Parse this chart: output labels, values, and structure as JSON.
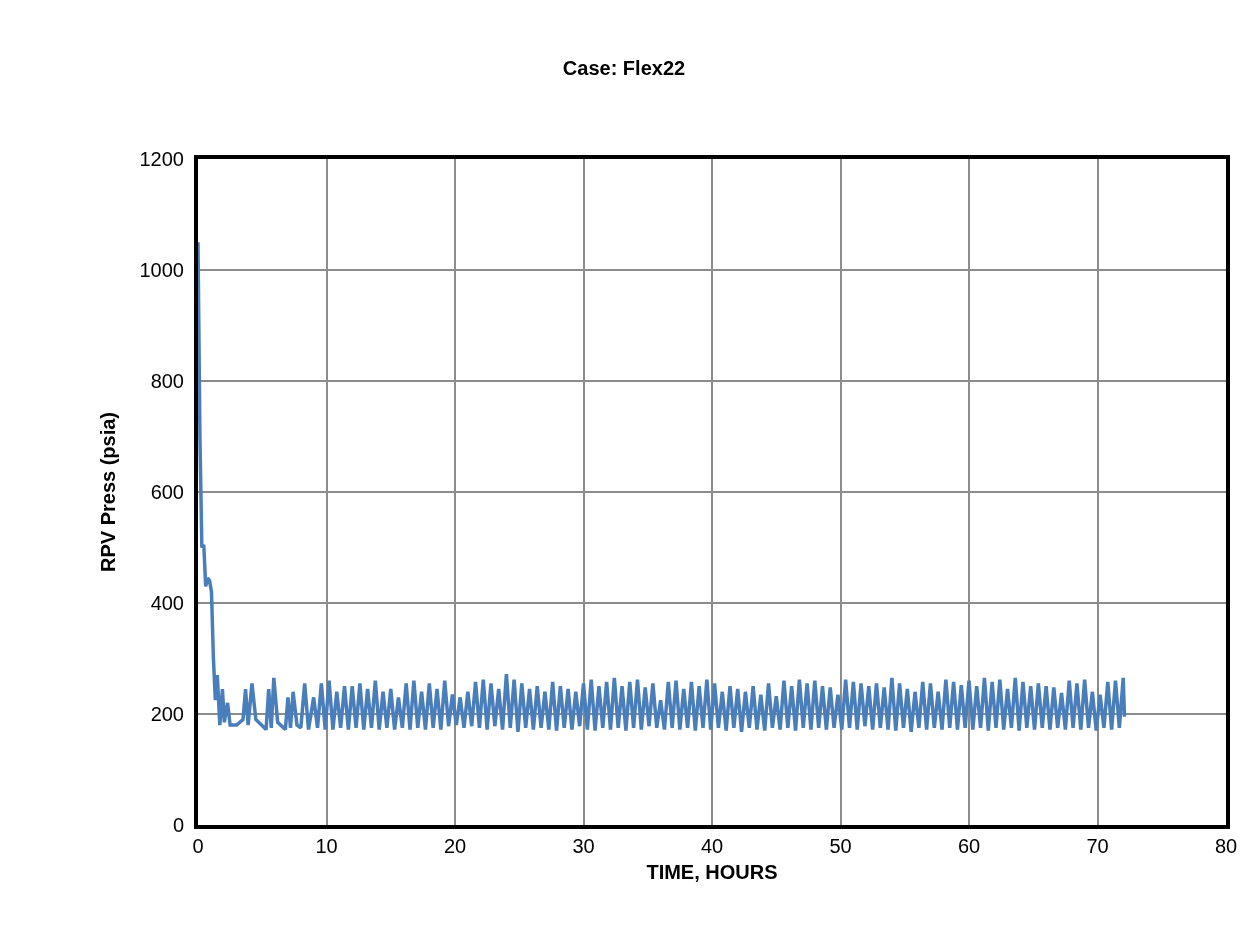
{
  "chart_data": {
    "type": "line",
    "title": "Case: Flex22",
    "xlabel": "TIME, HOURS",
    "ylabel": "RPV Press (psia)",
    "xlim": [
      0,
      80
    ],
    "xticks": [
      0,
      10,
      20,
      30,
      40,
      50,
      60,
      70,
      80
    ],
    "ylim": [
      0,
      1200
    ],
    "yticks": [
      0,
      200,
      400,
      600,
      800,
      1000,
      1200
    ],
    "grid": true,
    "legend": false,
    "marker": "none",
    "line_style": "solid",
    "series": [
      {
        "color": "#4a7ebb",
        "x": [
          0,
          0.15,
          0.3,
          0.45,
          0.6,
          0.75,
          0.9,
          1.05,
          1.2,
          1.35,
          1.5,
          1.7,
          1.9,
          2.05,
          2.3,
          2.5,
          3.0,
          3.5,
          3.7,
          3.9,
          4.2,
          4.5,
          5.3,
          5.5,
          5.7,
          5.9,
          6.2,
          6.8,
          7.0,
          7.2,
          7.4,
          7.7,
          8.0,
          8.3,
          8.6,
          9.0,
          9.3,
          9.6,
          9.9,
          10.2,
          10.5,
          10.8,
          11.1,
          11.4,
          11.7,
          12.0,
          12.3,
          12.6,
          12.9,
          13.2,
          13.5,
          13.8,
          14.1,
          14.4,
          14.7,
          15.0,
          15.3,
          15.6,
          15.9,
          16.2,
          16.5,
          16.8,
          17.1,
          17.4,
          17.7,
          18.0,
          18.3,
          18.6,
          18.9,
          19.2,
          19.5,
          19.8,
          20.1,
          20.4,
          20.7,
          21.0,
          21.3,
          21.6,
          21.9,
          22.2,
          22.5,
          22.8,
          23.1,
          23.4,
          23.7,
          24.0,
          24.3,
          24.6,
          24.9,
          25.2,
          25.5,
          25.8,
          26.1,
          26.4,
          26.7,
          27.0,
          27.3,
          27.6,
          27.9,
          28.2,
          28.5,
          28.8,
          29.1,
          29.4,
          29.7,
          30.0,
          30.3,
          30.6,
          30.9,
          31.2,
          31.5,
          31.8,
          32.1,
          32.4,
          32.7,
          33.0,
          33.3,
          33.6,
          33.9,
          34.2,
          34.5,
          34.8,
          35.1,
          35.4,
          35.7,
          36.0,
          36.3,
          36.6,
          36.9,
          37.2,
          37.5,
          37.8,
          38.1,
          38.4,
          38.7,
          39.0,
          39.3,
          39.6,
          39.9,
          40.2,
          40.5,
          40.8,
          41.1,
          41.4,
          41.7,
          42.0,
          42.3,
          42.6,
          42.9,
          43.2,
          43.5,
          43.8,
          44.1,
          44.4,
          44.7,
          45.0,
          45.3,
          45.6,
          45.9,
          46.2,
          46.5,
          46.8,
          47.1,
          47.4,
          47.7,
          48.0,
          48.3,
          48.6,
          48.9,
          49.2,
          49.5,
          49.8,
          50.1,
          50.4,
          50.7,
          51.0,
          51.3,
          51.6,
          51.9,
          52.2,
          52.5,
          52.8,
          53.1,
          53.4,
          53.7,
          54.0,
          54.3,
          54.6,
          54.9,
          55.2,
          55.5,
          55.8,
          56.1,
          56.4,
          56.7,
          57.0,
          57.3,
          57.6,
          57.9,
          58.2,
          58.5,
          58.8,
          59.1,
          59.4,
          59.7,
          60.0,
          60.3,
          60.6,
          60.9,
          61.2,
          61.5,
          61.8,
          62.1,
          62.4,
          62.7,
          63.0,
          63.3,
          63.6,
          63.9,
          64.2,
          64.5,
          64.8,
          65.1,
          65.4,
          65.7,
          66.0,
          66.3,
          66.6,
          66.9,
          67.2,
          67.5,
          67.8,
          68.1,
          68.4,
          68.7,
          69.0,
          69.3,
          69.6,
          69.9,
          70.2,
          70.5,
          70.8,
          71.1,
          71.4,
          71.7,
          72.0,
          72.1
        ],
        "values": [
          1050,
          700,
          500,
          505,
          430,
          445,
          440,
          420,
          300,
          225,
          270,
          180,
          245,
          185,
          220,
          180,
          180,
          190,
          245,
          180,
          255,
          190,
          172,
          245,
          175,
          265,
          185,
          172,
          230,
          175,
          240,
          180,
          175,
          255,
          172,
          230,
          175,
          255,
          172,
          260,
          172,
          240,
          175,
          250,
          172,
          250,
          175,
          255,
          172,
          245,
          175,
          260,
          172,
          240,
          175,
          245,
          172,
          230,
          175,
          255,
          172,
          260,
          175,
          240,
          172,
          255,
          175,
          245,
          172,
          260,
          178,
          235,
          180,
          230,
          175,
          240,
          178,
          258,
          175,
          262,
          172,
          255,
          178,
          245,
          172,
          272,
          175,
          262,
          168,
          255,
          175,
          245,
          172,
          250,
          175,
          240,
          172,
          258,
          170,
          250,
          175,
          245,
          172,
          240,
          178,
          255,
          172,
          262,
          170,
          250,
          175,
          258,
          172,
          265,
          175,
          250,
          170,
          258,
          175,
          262,
          172,
          248,
          178,
          255,
          175,
          225,
          172,
          258,
          175,
          260,
          172,
          245,
          175,
          258,
          170,
          250,
          175,
          262,
          172,
          255,
          175,
          240,
          170,
          250,
          175,
          245,
          168,
          240,
          175,
          250,
          172,
          235,
          170,
          255,
          175,
          232,
          172,
          260,
          175,
          250,
          170,
          262,
          175,
          255,
          172,
          260,
          175,
          250,
          172,
          248,
          175,
          235,
          172,
          262,
          175,
          258,
          172,
          255,
          178,
          250,
          172,
          255,
          175,
          248,
          172,
          265,
          170,
          255,
          175,
          245,
          168,
          240,
          175,
          258,
          172,
          255,
          175,
          240,
          172,
          262,
          175,
          258,
          172,
          252,
          175,
          260,
          172,
          250,
          175,
          265,
          170,
          258,
          175,
          262,
          172,
          245,
          175,
          265,
          170,
          258,
          175,
          250,
          172,
          255,
          175,
          250,
          172,
          248,
          175,
          238,
          172,
          260,
          175,
          255,
          172,
          262,
          175,
          240,
          170,
          235,
          175,
          258,
          172,
          260,
          175,
          265,
          195
        ]
      }
    ]
  }
}
